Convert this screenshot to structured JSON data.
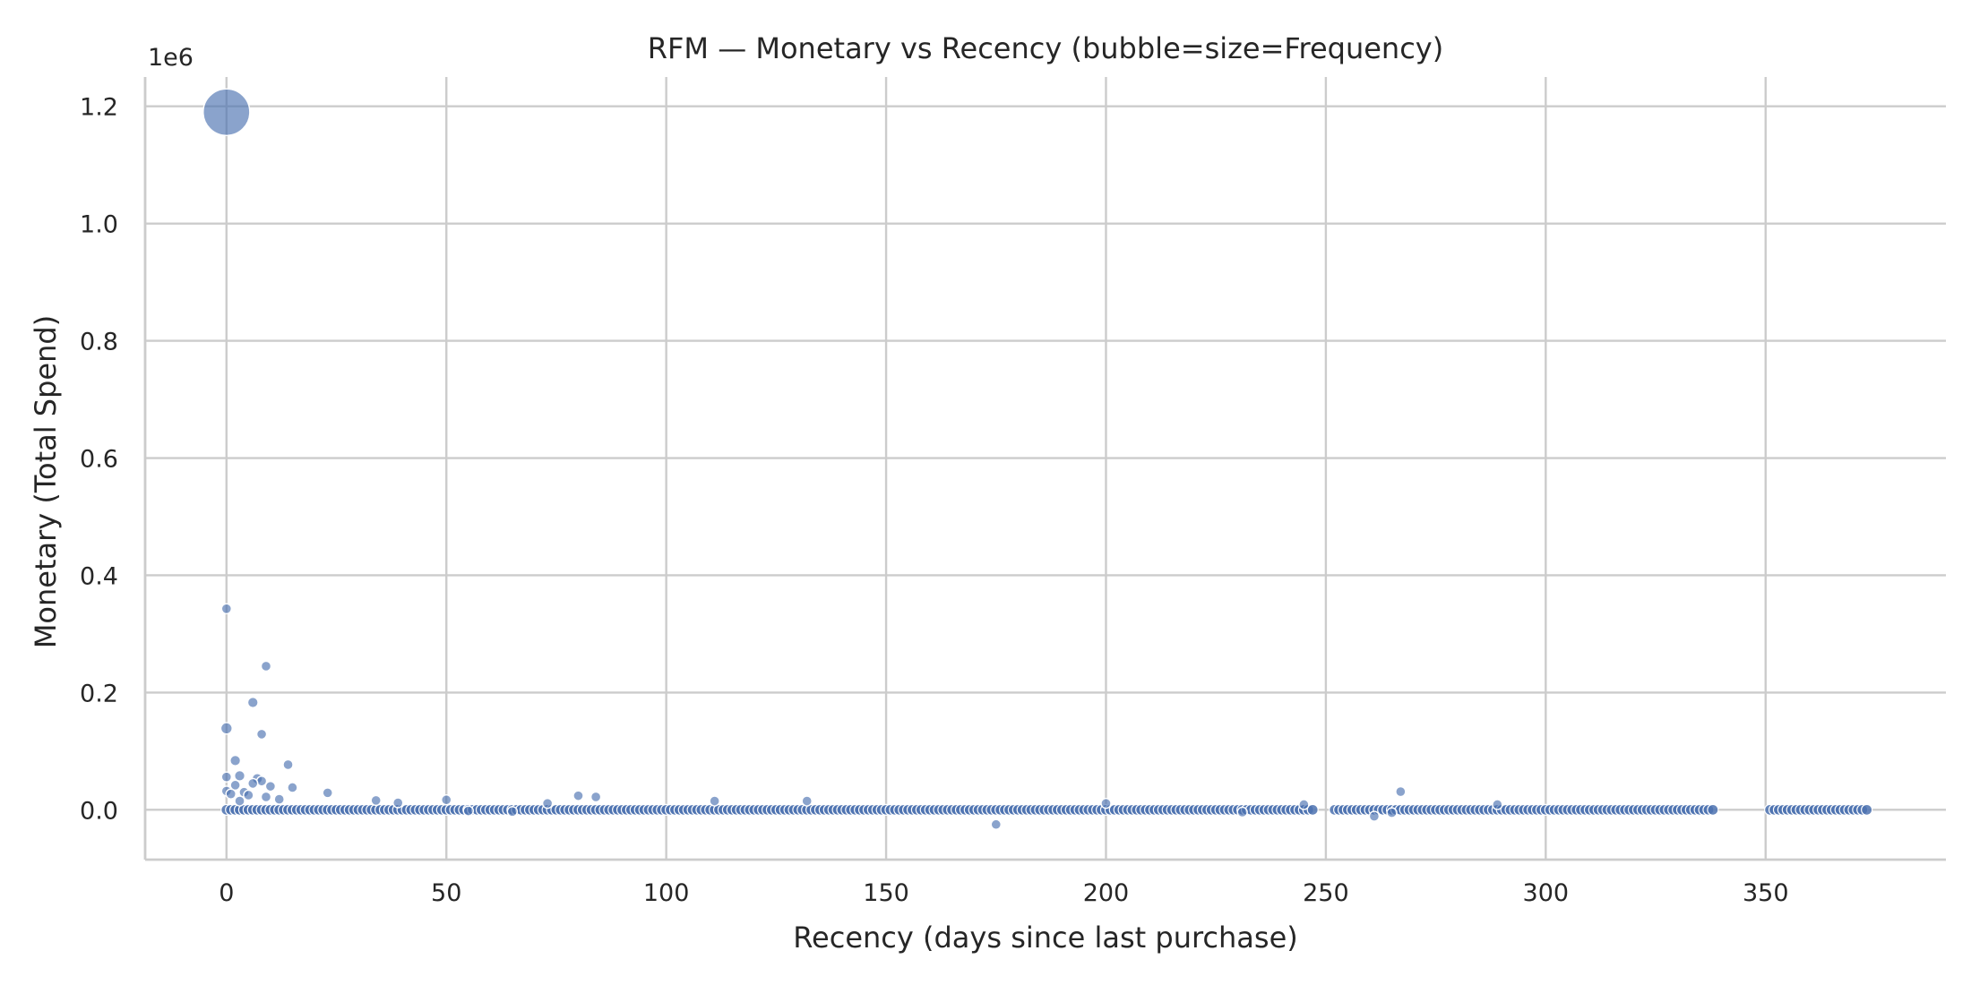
{
  "chart_data": {
    "type": "scatter",
    "title": "RFM — Monetary vs Recency (bubble=size=Frequency)",
    "xlabel": "Recency (days since last purchase)",
    "ylabel": "Monetary (Total Spend)",
    "y_offset_label": "1e6",
    "xlim": [
      -18.5,
      391
    ],
    "ylim": [
      -85000,
      1250000
    ],
    "x_ticks": [
      0,
      50,
      100,
      150,
      200,
      250,
      300,
      350
    ],
    "x_tick_labels": [
      "0",
      "50",
      "100",
      "150",
      "200",
      "250",
      "300",
      "350"
    ],
    "y_ticks": [
      0,
      200000,
      400000,
      600000,
      800000,
      1000000,
      1200000
    ],
    "y_tick_labels": [
      "0.0",
      "0.2",
      "0.4",
      "0.6",
      "0.8",
      "1.0",
      "1.2"
    ],
    "grid": true,
    "color": "#4c72b0",
    "size_encoding": "Frequency",
    "points": [
      {
        "x": 0,
        "y": 1190000,
        "f": 100
      },
      {
        "x": 0,
        "y": 343000,
        "f": 4
      },
      {
        "x": 9,
        "y": 245000,
        "f": 4
      },
      {
        "x": 6,
        "y": 183000,
        "f": 5
      },
      {
        "x": 0,
        "y": 139000,
        "f": 6
      },
      {
        "x": 8,
        "y": 129000,
        "f": 4
      },
      {
        "x": 2,
        "y": 84000,
        "f": 5
      },
      {
        "x": 14,
        "y": 77000,
        "f": 3
      },
      {
        "x": 0,
        "y": 56000,
        "f": 4
      },
      {
        "x": 3,
        "y": 58000,
        "f": 5
      },
      {
        "x": 7,
        "y": 53000,
        "f": 5
      },
      {
        "x": 8,
        "y": 49000,
        "f": 4
      },
      {
        "x": 6,
        "y": 45000,
        "f": 4
      },
      {
        "x": 2,
        "y": 42000,
        "f": 4
      },
      {
        "x": 10,
        "y": 40000,
        "f": 4
      },
      {
        "x": 15,
        "y": 38000,
        "f": 3
      },
      {
        "x": 0,
        "y": 32000,
        "f": 3
      },
      {
        "x": 4,
        "y": 30000,
        "f": 4
      },
      {
        "x": 1,
        "y": 27000,
        "f": 3
      },
      {
        "x": 5,
        "y": 25000,
        "f": 3
      },
      {
        "x": 23,
        "y": 29000,
        "f": 3
      },
      {
        "x": 9,
        "y": 22000,
        "f": 3
      },
      {
        "x": 12,
        "y": 18000,
        "f": 3
      },
      {
        "x": 3,
        "y": 15000,
        "f": 3
      },
      {
        "x": 34,
        "y": 16000,
        "f": 3
      },
      {
        "x": 50,
        "y": 17000,
        "f": 3
      },
      {
        "x": 39,
        "y": 12000,
        "f": 2
      },
      {
        "x": 80,
        "y": 24000,
        "f": 3
      },
      {
        "x": 84,
        "y": 22000,
        "f": 3
      },
      {
        "x": 73,
        "y": 11000,
        "f": 2
      },
      {
        "x": 111,
        "y": 15000,
        "f": 2
      },
      {
        "x": 132,
        "y": 15000,
        "f": 2
      },
      {
        "x": 200,
        "y": 11000,
        "f": 2
      },
      {
        "x": 245,
        "y": 9000,
        "f": 2
      },
      {
        "x": 267,
        "y": 31000,
        "f": 2
      },
      {
        "x": 289,
        "y": 9000,
        "f": 2
      },
      {
        "x": 175,
        "y": -25000,
        "f": 2
      },
      {
        "x": 261,
        "y": -11000,
        "f": 2
      },
      {
        "x": 265,
        "y": -5000,
        "f": 2
      },
      {
        "x": 231,
        "y": -4000,
        "f": 2
      },
      {
        "x": 65,
        "y": -3000,
        "f": 2
      },
      {
        "x": 55,
        "y": -2000,
        "f": 2
      }
    ],
    "baseline_clusters": [
      {
        "from": 0,
        "to": 247,
        "step": 1
      },
      {
        "from": 252,
        "to": 338,
        "step": 1
      },
      {
        "from": 351,
        "to": 373,
        "step": 1
      }
    ]
  }
}
